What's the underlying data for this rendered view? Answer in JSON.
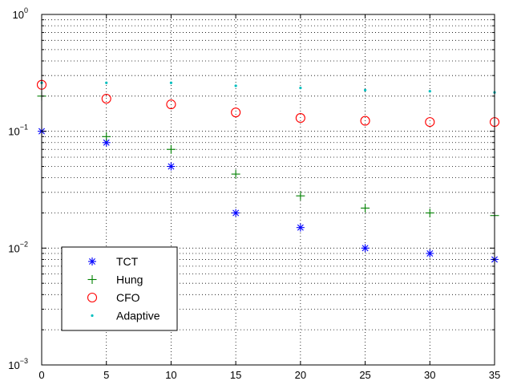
{
  "chart_data": {
    "type": "scatter",
    "title": "",
    "xlabel": "",
    "ylabel": "",
    "xlim": [
      0,
      35
    ],
    "ylim": [
      0.001,
      1
    ],
    "yscale": "log",
    "grid": true,
    "legend_position": "lower-left",
    "x_ticks": [
      0,
      5,
      10,
      15,
      20,
      25,
      30,
      35
    ],
    "y_ticks": [
      {
        "value": 0.001,
        "base": "10",
        "exp": "−3"
      },
      {
        "value": 0.01,
        "base": "10",
        "exp": "−2"
      },
      {
        "value": 0.1,
        "base": "10",
        "exp": "−1"
      },
      {
        "value": 1,
        "base": "10",
        "exp": "0"
      }
    ],
    "x": [
      0,
      5,
      10,
      15,
      20,
      25,
      30,
      35
    ],
    "series": [
      {
        "name": "TCT",
        "marker": "asterisk",
        "color": "#0000ff",
        "values": [
          0.1,
          0.08,
          0.05,
          0.02,
          0.015,
          0.01,
          0.009,
          0.008
        ]
      },
      {
        "name": "Hung",
        "marker": "plus",
        "color": "#008000",
        "values": [
          0.2,
          0.09,
          0.07,
          0.043,
          0.028,
          0.022,
          0.02,
          0.019
        ]
      },
      {
        "name": "CFO",
        "marker": "circle",
        "color": "#ff0000",
        "values": [
          0.25,
          0.19,
          0.17,
          0.145,
          0.13,
          0.123,
          0.12,
          0.12
        ]
      },
      {
        "name": "Adaptive",
        "marker": "dot",
        "color": "#00bfbf",
        "values": [
          0.26,
          0.26,
          0.26,
          0.245,
          0.235,
          0.225,
          0.22,
          0.215
        ]
      }
    ]
  }
}
